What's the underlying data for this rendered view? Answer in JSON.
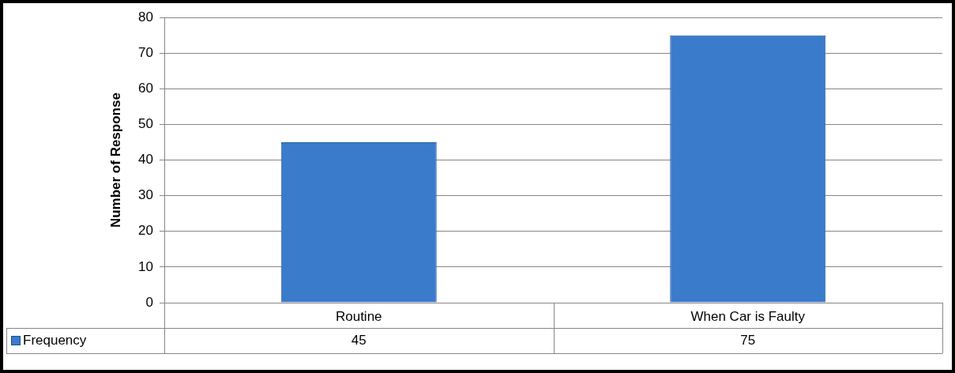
{
  "chart_data": {
    "type": "bar",
    "ylabel": "Number of Response",
    "categories": [
      "Routine",
      "When Car is Faulty"
    ],
    "series": [
      {
        "name": "Frequency",
        "color": "#3b7bcc",
        "values": [
          45,
          75
        ]
      }
    ],
    "ylim": [
      0,
      80
    ],
    "yticks": [
      0,
      10,
      20,
      30,
      40,
      50,
      60,
      70,
      80
    ],
    "grid": "y",
    "legend": "bottom",
    "data_labels": true
  }
}
